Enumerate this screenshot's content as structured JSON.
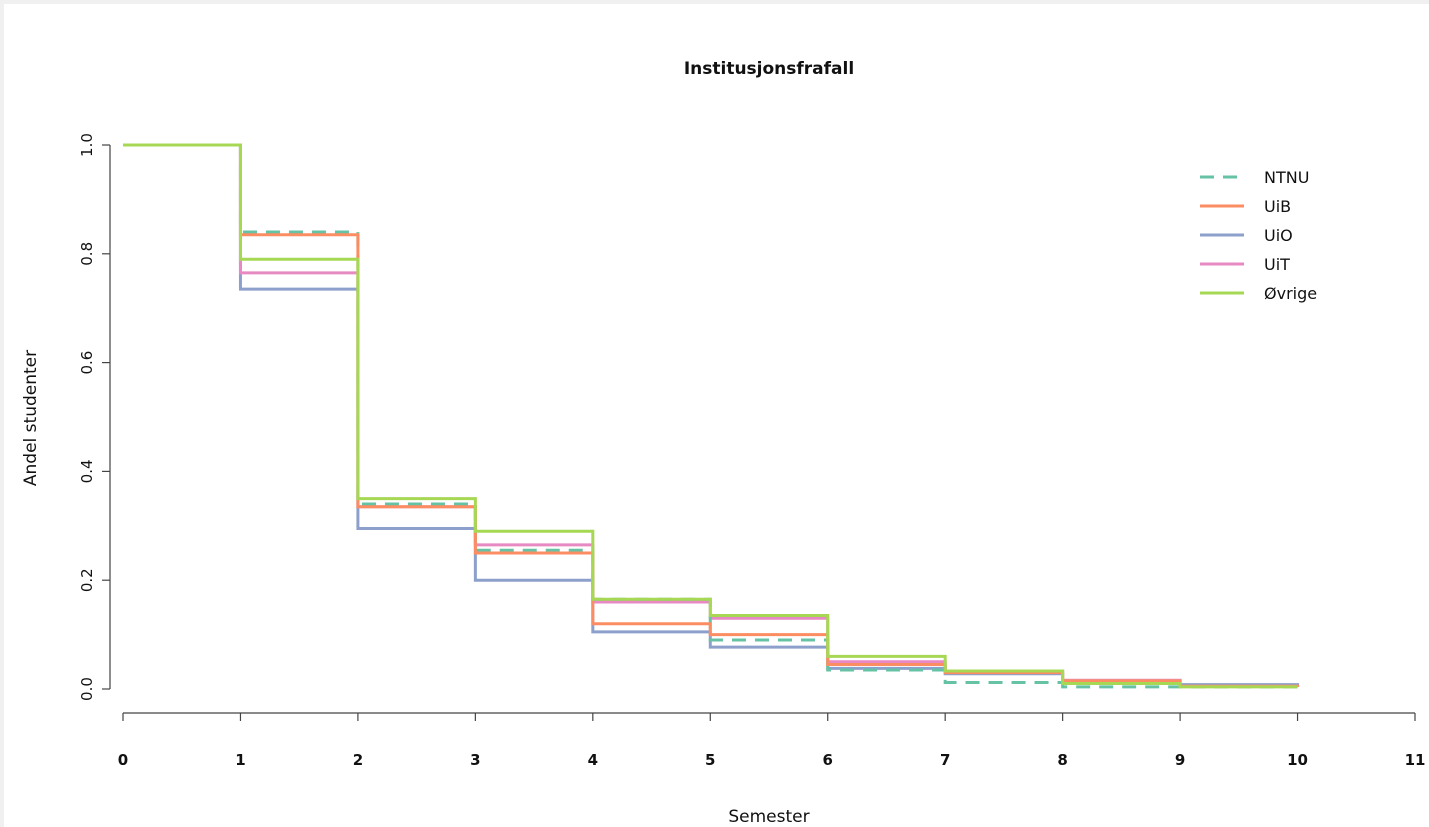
{
  "chart_data": {
    "type": "line",
    "step": true,
    "title": "Institusjonsfrafall",
    "xlabel": "Semester",
    "ylabel": "Andel studenter",
    "xlim": [
      0,
      11
    ],
    "ylim": [
      0,
      1
    ],
    "x_ticks": [
      "0",
      "1",
      "2",
      "3",
      "4",
      "5",
      "6",
      "7",
      "8",
      "9",
      "10",
      "11"
    ],
    "y_ticks": [
      "0.0",
      "0.2",
      "0.4",
      "0.6",
      "0.8",
      "1.0"
    ],
    "grid": false,
    "legend_position": "top-right",
    "x": [
      0,
      1,
      2,
      3,
      4,
      5,
      6,
      7,
      8,
      9,
      10
    ],
    "series": [
      {
        "name": "NTNU",
        "color": "#66c2a5",
        "dashed": true,
        "values": [
          1.0,
          0.84,
          0.34,
          0.255,
          0.165,
          0.09,
          0.035,
          0.012,
          0.004,
          0.004,
          0.004
        ]
      },
      {
        "name": "UiB",
        "color": "#fc8d62",
        "dashed": false,
        "values": [
          1.0,
          0.835,
          0.335,
          0.25,
          0.12,
          0.1,
          0.045,
          0.03,
          0.015,
          0.005,
          0.004
        ]
      },
      {
        "name": "UiO",
        "color": "#8da0cb",
        "dashed": false,
        "values": [
          1.0,
          0.735,
          0.295,
          0.2,
          0.105,
          0.077,
          0.038,
          0.028,
          0.015,
          0.008,
          0.004
        ]
      },
      {
        "name": "UiT",
        "color": "#e78ac3",
        "dashed": false,
        "values": [
          1.0,
          0.765,
          0.335,
          0.265,
          0.16,
          0.13,
          0.05,
          0.033,
          0.016,
          0.005,
          0.004
        ]
      },
      {
        "name": "Øvrige",
        "color": "#a6d854",
        "dashed": false,
        "values": [
          1.0,
          0.79,
          0.35,
          0.29,
          0.165,
          0.135,
          0.06,
          0.033,
          0.01,
          0.004,
          0.004
        ]
      }
    ]
  }
}
